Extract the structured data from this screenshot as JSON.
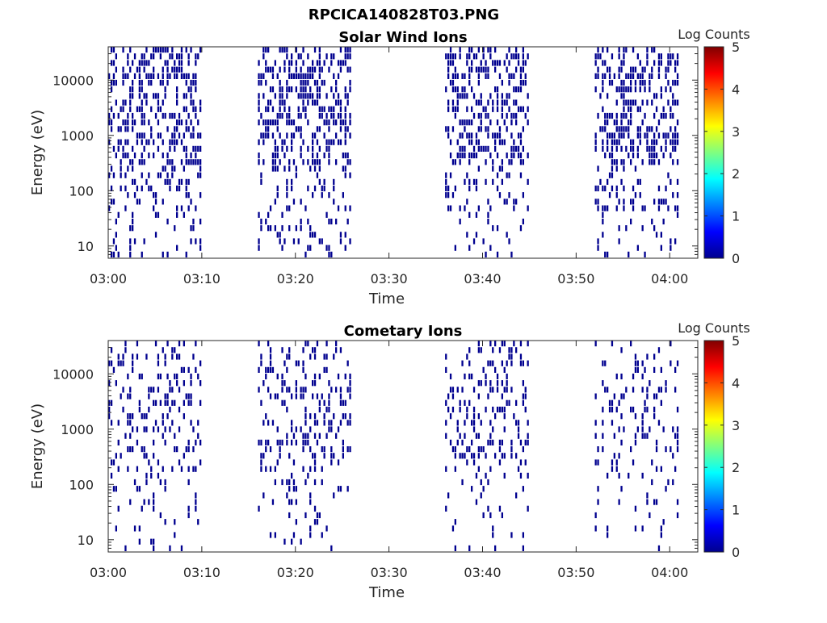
{
  "figure_title": "RPCICA140828T03.PNG",
  "chart_data": [
    {
      "type": "heatmap",
      "title": "Solar Wind Ions",
      "xlabel": "Time",
      "ylabel": "Energy (eV)",
      "y_scale": "log",
      "xlim": [
        "03:00",
        "04:03"
      ],
      "ylim": [
        6,
        40000
      ],
      "x_ticks": [
        "03:00",
        "03:10",
        "03:20",
        "03:30",
        "03:40",
        "03:50",
        "04:00"
      ],
      "y_ticks": [
        "10",
        "100",
        "1000",
        "10000"
      ],
      "colorbar": {
        "label": "Log Counts",
        "range": [
          0,
          5
        ],
        "ticks": [
          "0",
          "1",
          "2",
          "3",
          "4",
          "5"
        ],
        "colormap": "jet"
      },
      "value_shown": "all plotted pixels at level ~0 (dark blue, #00008f)",
      "data_segments": [
        {
          "start": "03:00",
          "end": "03:10"
        },
        {
          "start": "03:16",
          "end": "03:26"
        },
        {
          "start": "03:36",
          "end": "03:45"
        },
        {
          "start": "03:52",
          "end": "04:01"
        }
      ]
    },
    {
      "type": "heatmap",
      "title": "Cometary Ions",
      "xlabel": "Time",
      "ylabel": "Energy (eV)",
      "y_scale": "log",
      "xlim": [
        "03:00",
        "04:03"
      ],
      "ylim": [
        6,
        40000
      ],
      "x_ticks": [
        "03:00",
        "03:10",
        "03:20",
        "03:30",
        "03:40",
        "03:50",
        "04:00"
      ],
      "y_ticks": [
        "10",
        "100",
        "1000",
        "10000"
      ],
      "colorbar": {
        "label": "Log Counts",
        "range": [
          0,
          5
        ],
        "ticks": [
          "0",
          "1",
          "2",
          "3",
          "4",
          "5"
        ],
        "colormap": "jet"
      },
      "value_shown": "all plotted pixels at level ~0 (dark blue, #00008f)",
      "data_segments": [
        {
          "start": "03:00",
          "end": "03:10"
        },
        {
          "start": "03:16",
          "end": "03:26"
        },
        {
          "start": "03:36",
          "end": "03:45"
        },
        {
          "start": "03:52",
          "end": "04:01"
        }
      ]
    }
  ],
  "colors": {
    "data": "#00008f",
    "axis": "#262626"
  }
}
